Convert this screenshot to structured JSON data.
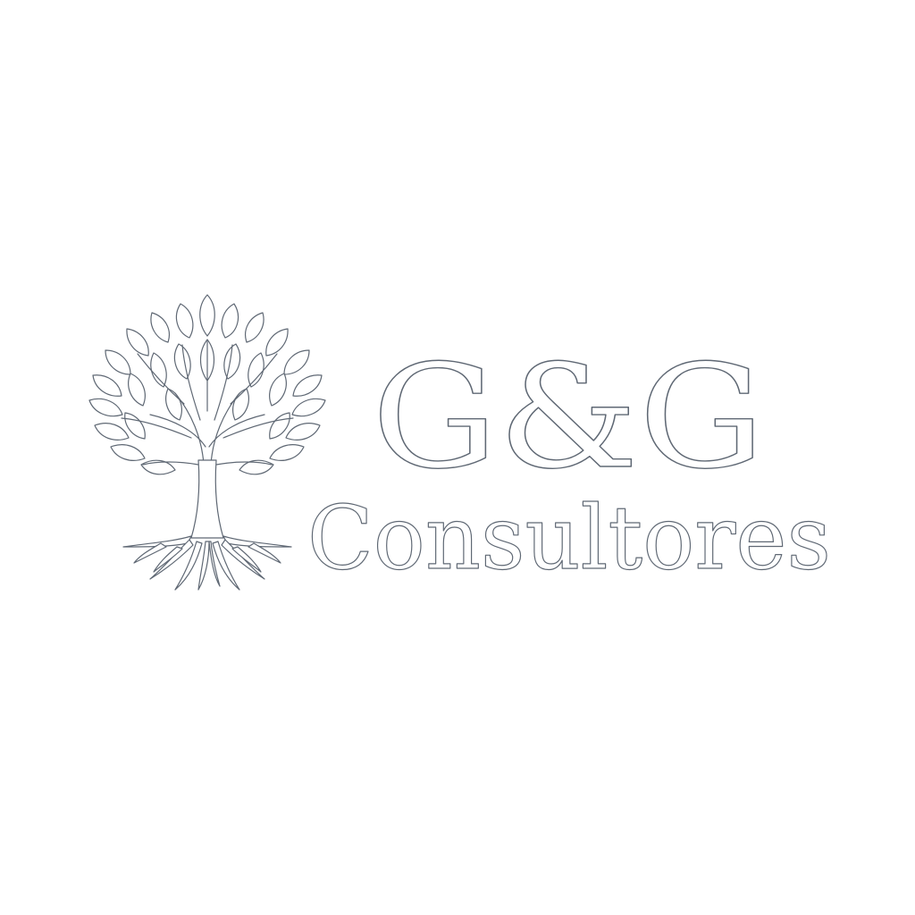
{
  "brand": {
    "name_line1": "G&G",
    "name_line2": "Consultores"
  },
  "icons": {
    "logo_mark": "tree-with-roots-icon"
  },
  "colors": {
    "background": "#ffffff",
    "outline": "#5f6874",
    "fill": "#ffffff"
  }
}
